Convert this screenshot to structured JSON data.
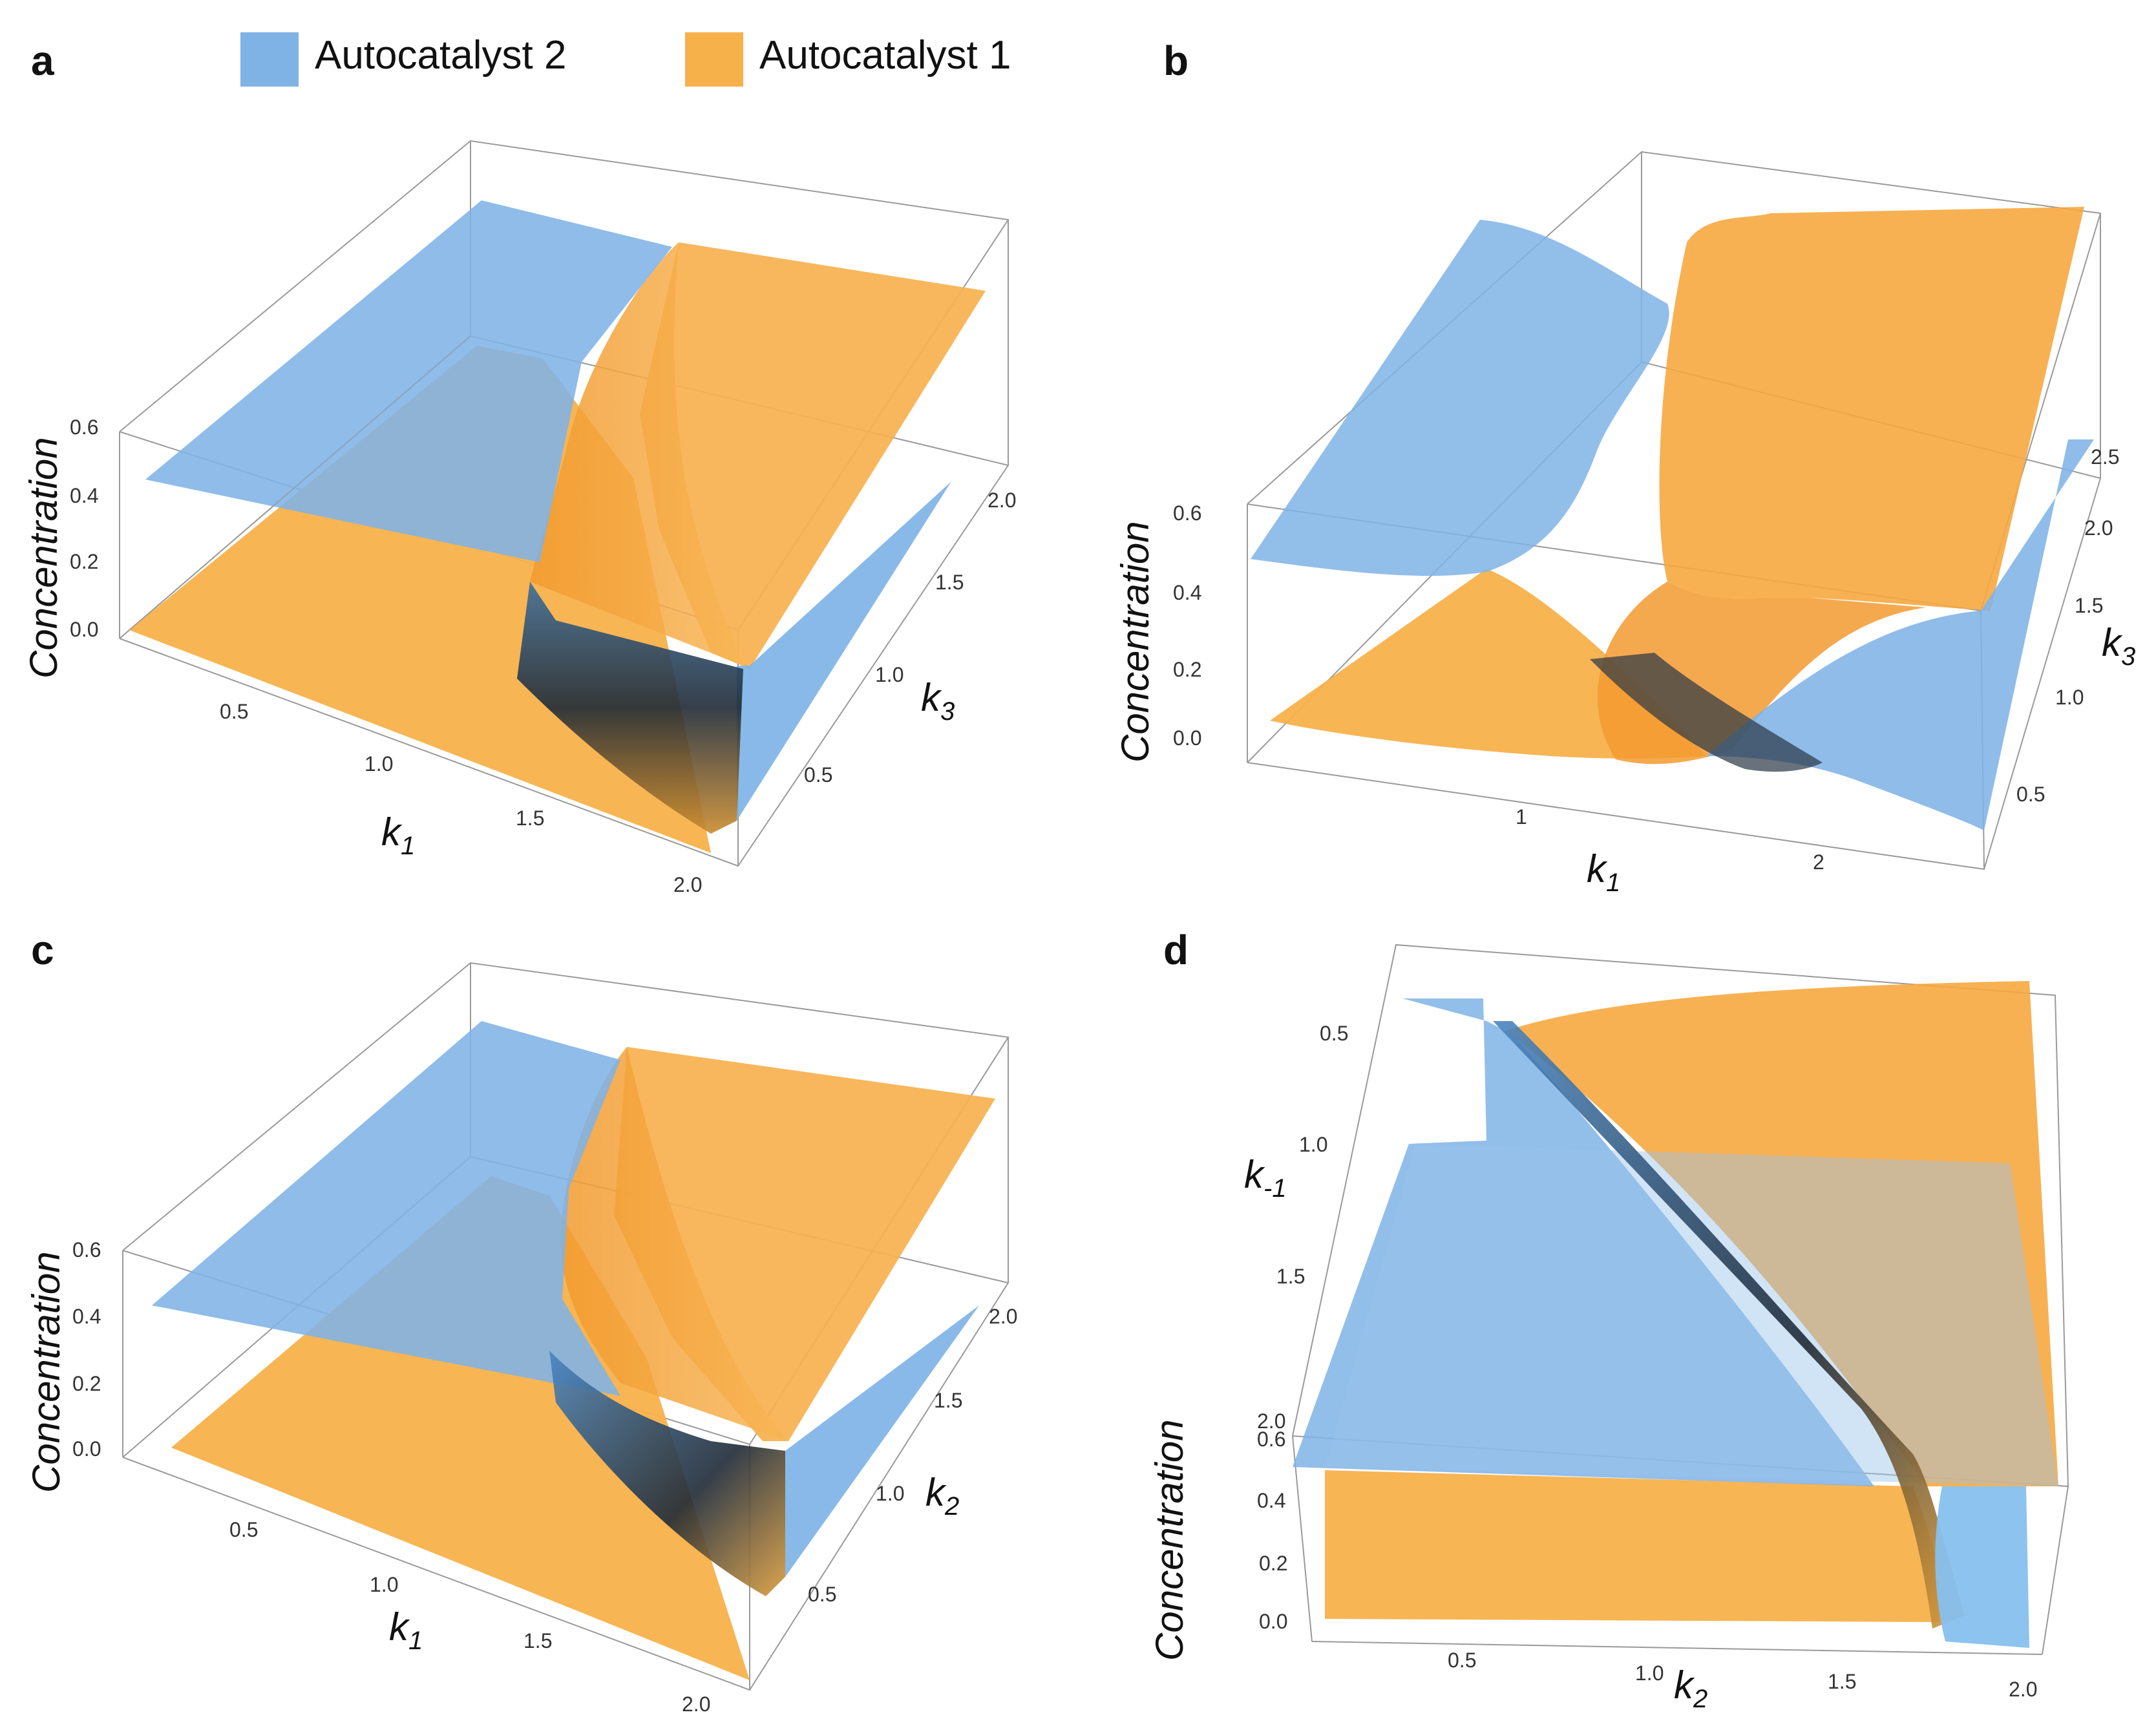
{
  "figure": {
    "panel_letters": [
      "a",
      "b",
      "c",
      "d"
    ],
    "legend": {
      "items": [
        {
          "label": "Autocatalyst 2",
          "color": "#7fb3e6"
        },
        {
          "label": "Autocatalyst 1",
          "color": "#f7b14b"
        }
      ]
    },
    "colors": {
      "blue": "#7fb3e6",
      "blue_dark": "#3f7fbf",
      "orange": "#f7b14b",
      "orange_dark": "#e08a1f",
      "shadow": "#2a2a2a"
    }
  },
  "panels": [
    {
      "id": "a",
      "z_label": "Concentration",
      "x_label": {
        "base": "k",
        "sub": "1"
      },
      "y_label": {
        "base": "k",
        "sub": "3"
      },
      "z_ticks": [
        "0.0",
        "0.2",
        "0.4",
        "0.6"
      ],
      "x_ticks": [
        "0.5",
        "1.0",
        "1.5",
        "2.0"
      ],
      "y_ticks": [
        "0.5",
        "1.0",
        "1.5",
        "2.0"
      ]
    },
    {
      "id": "b",
      "z_label": "Concentration",
      "x_label": {
        "base": "k",
        "sub": "1"
      },
      "y_label": {
        "base": "k",
        "sub": "3"
      },
      "z_ticks": [
        "0.0",
        "0.2",
        "0.4",
        "0.6"
      ],
      "x_ticks": [
        "1",
        "2"
      ],
      "y_ticks": [
        "0.5",
        "1.0",
        "1.5",
        "2.0",
        "2.5"
      ]
    },
    {
      "id": "c",
      "z_label": "Concentration",
      "x_label": {
        "base": "k",
        "sub": "1"
      },
      "y_label": {
        "base": "k",
        "sub": "2"
      },
      "z_ticks": [
        "0.0",
        "0.2",
        "0.4",
        "0.6"
      ],
      "x_ticks": [
        "0.5",
        "1.0",
        "1.5",
        "2.0"
      ],
      "y_ticks": [
        "0.5",
        "1.0",
        "1.5",
        "2.0"
      ]
    },
    {
      "id": "d",
      "z_label": "Concentration",
      "x_label": {
        "base": "k",
        "sub": "2"
      },
      "y_label": {
        "base": "k",
        "sub": "-1"
      },
      "z_ticks": [
        "0.0",
        "0.2",
        "0.4",
        "0.6"
      ],
      "x_ticks": [
        "0.5",
        "1.0",
        "1.5",
        "2.0"
      ],
      "y_ticks": [
        "0.5",
        "1.0",
        "1.5",
        "2.0"
      ]
    }
  ]
}
